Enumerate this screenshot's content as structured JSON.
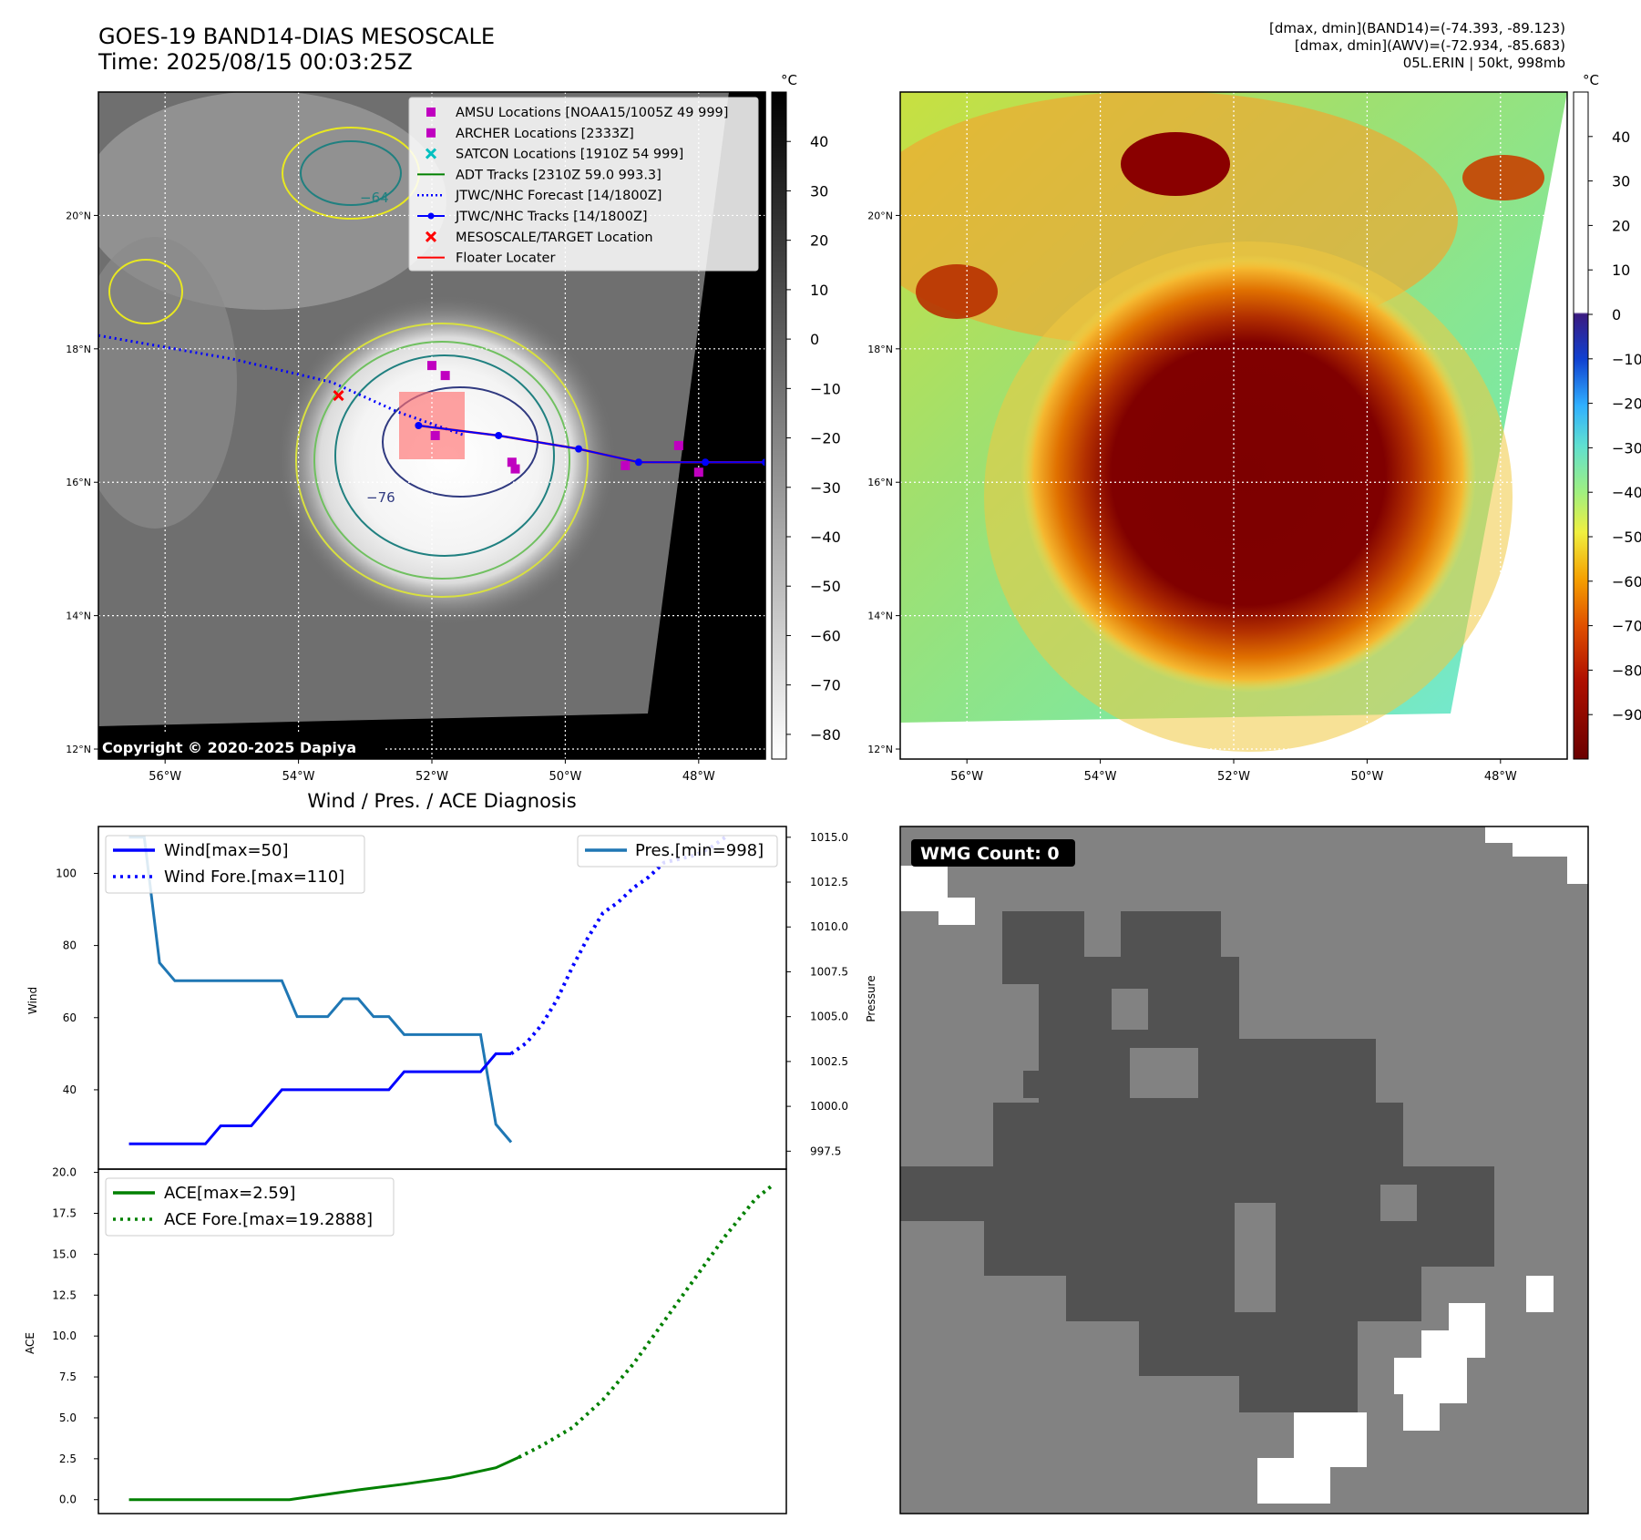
{
  "header": {
    "title_line1": "GOES-19 BAND14-DIAS MESOSCALE",
    "title_line2": "Time: 2025/08/15 00:03:25Z",
    "info_line1": "[dmax, dmin](BAND14)=(-74.393, -89.123)",
    "info_line2": "[dmax, dmin](AWV)=(-72.934, -85.683)",
    "info_line3": "05L.ERIN | 50kt, 998mb"
  },
  "map_common": {
    "lat_ticks": [
      "20°N",
      "18°N",
      "16°N",
      "14°N",
      "12°N"
    ],
    "lon_ticks": [
      "56°W",
      "54°W",
      "52°W",
      "50°W",
      "48°W"
    ],
    "lat_values": [
      20,
      18,
      16,
      14,
      12
    ],
    "lon_values": [
      -56,
      -54,
      -52,
      -50,
      -48
    ],
    "lat_range": [
      11.85,
      21.85
    ],
    "lon_range": [
      -57,
      -47
    ]
  },
  "ir_panel": {
    "copyright": "Copyright © 2020-2025 Dapiya",
    "colorbar_unit": "°C",
    "colorbar_ticks": [
      "40",
      "30",
      "20",
      "10",
      "0",
      "−10",
      "−20",
      "−30",
      "−40",
      "−50",
      "−60",
      "−70",
      "−80"
    ],
    "colorbar_values": [
      40,
      30,
      20,
      10,
      0,
      -10,
      -20,
      -30,
      -40,
      -50,
      -60,
      -70,
      -80
    ],
    "colorbar_range": [
      -85,
      50
    ],
    "contour_labels": [
      "−64",
      "−76"
    ],
    "legend": [
      {
        "label": "AMSU Locations [NOAA15/1005Z 49 999]",
        "color": "#c000c0",
        "marker": "square"
      },
      {
        "label": "ARCHER Locations [2333Z]",
        "color": "#c000c0",
        "marker": "square"
      },
      {
        "label": "SATCON Locations [1910Z 54 999]",
        "color": "#00c0c0",
        "marker": "x"
      },
      {
        "label": "ADT Tracks [2310Z 59.0 993.3]",
        "color": "#008000",
        "marker": "line"
      },
      {
        "label": "JTWC/NHC Forecast [14/1800Z]",
        "color": "#0000ff",
        "marker": "dotted"
      },
      {
        "label": "JTWC/NHC Tracks [14/1800Z]",
        "color": "#0000ff",
        "marker": "line-dot"
      },
      {
        "label": "MESOSCALE/TARGET Location",
        "color": "#ff0000",
        "marker": "x"
      },
      {
        "label": "Floater Locater",
        "color": "#ff0000",
        "marker": "line"
      }
    ],
    "forecast_track": [
      [
        -57,
        18.2
      ],
      [
        -55,
        17.85
      ],
      [
        -53.5,
        17.5
      ],
      [
        -52.5,
        17.05
      ],
      [
        -51.5,
        16.7
      ]
    ],
    "best_track": [
      [
        -52.2,
        16.85
      ],
      [
        -51,
        16.7
      ],
      [
        -49.8,
        16.5
      ],
      [
        -48.9,
        16.3
      ],
      [
        -47.9,
        16.3
      ],
      [
        -47,
        16.3
      ]
    ],
    "target_location": [
      -53.4,
      17.3
    ],
    "amsu_points": [
      [
        -52,
        17.75
      ],
      [
        -51.8,
        17.6
      ],
      [
        -51.95,
        16.7
      ],
      [
        -50.8,
        16.3
      ],
      [
        -50.75,
        16.2
      ],
      [
        -49.1,
        16.25
      ],
      [
        -48.3,
        16.55
      ],
      [
        -48,
        16.15
      ]
    ]
  },
  "awv_panel": {
    "colorbar_unit": "°C",
    "colorbar_ticks": [
      "40",
      "30",
      "20",
      "10",
      "0",
      "−10",
      "−20",
      "−30",
      "−40",
      "−50",
      "−60",
      "−70",
      "−80",
      "−90"
    ],
    "colorbar_values": [
      40,
      30,
      20,
      10,
      0,
      -10,
      -20,
      -30,
      -40,
      -50,
      -60,
      -70,
      -80,
      -90
    ],
    "colorbar_range": [
      -100,
      50
    ]
  },
  "diag_panel": {
    "title": "Wind / Pres. / ACE Diagnosis",
    "wind_ylabel": "Wind",
    "pressure_ylabel": "Pressure",
    "ace_ylabel": "ACE",
    "wind_legend": [
      {
        "label": "Wind[max=50]",
        "color": "#0000ff",
        "style": "solid"
      },
      {
        "label": "Wind Fore.[max=110]",
        "color": "#0000ff",
        "style": "dotted"
      }
    ],
    "pres_legend": [
      {
        "label": "Pres.[min=998]",
        "color": "#1f77b4",
        "style": "solid"
      }
    ],
    "ace_legend": [
      {
        "label": "ACE[max=2.59]",
        "color": "#008000",
        "style": "solid"
      },
      {
        "label": "ACE Fore.[max=19.2888]",
        "color": "#008000",
        "style": "dotted"
      }
    ],
    "wind_ticks": [
      "100",
      "80",
      "60",
      "40"
    ],
    "pressure_ticks": [
      "1015.0",
      "1012.5",
      "1010.0",
      "1007.5",
      "1005.0",
      "1002.5",
      "1000.0",
      "997.5"
    ],
    "ace_ticks": [
      "20.0",
      "17.5",
      "15.0",
      "12.5",
      "10.0",
      "7.5",
      "5.0",
      "2.5",
      "0.0"
    ]
  },
  "chart_data": [
    {
      "type": "line",
      "title": "Wind / Pres. / ACE Diagnosis",
      "ylabel": "Wind",
      "x_index_range": [
        -2,
        43
      ],
      "ylim": [
        18,
        113
      ],
      "series": [
        {
          "name": "Wind[max=50]",
          "x": [
            0,
            1,
            2,
            3,
            4,
            5,
            6,
            7,
            8,
            9,
            10,
            11,
            12,
            13,
            14,
            15,
            16,
            17,
            18,
            19,
            20,
            21,
            22,
            23,
            24,
            25
          ],
          "values": [
            25,
            25,
            25,
            25,
            25,
            25,
            30,
            30,
            30,
            35,
            40,
            40,
            40,
            40,
            40,
            40,
            40,
            40,
            45,
            45,
            45,
            45,
            45,
            45,
            50,
            50
          ]
        },
        {
          "name": "Wind Fore.[max=110]",
          "x": [
            25,
            26,
            27,
            28,
            29,
            30,
            31,
            32,
            33,
            34,
            35,
            36,
            37,
            38,
            39
          ],
          "values": [
            50,
            53,
            58,
            65,
            74,
            82,
            89,
            92,
            96,
            99,
            103,
            104,
            105,
            107,
            110
          ]
        }
      ]
    },
    {
      "type": "line",
      "ylabel": "Pressure",
      "ylim": [
        996.5,
        1015.6
      ],
      "series": [
        {
          "name": "Pres.[min=998]",
          "x": [
            0,
            1,
            2,
            3,
            4,
            5,
            6,
            7,
            8,
            9,
            10,
            11,
            12,
            13,
            14,
            15,
            16,
            17,
            18,
            19,
            20,
            21,
            22,
            23,
            24,
            25
          ],
          "values": [
            1015,
            1015,
            1008,
            1007,
            1007,
            1007,
            1007,
            1007,
            1007,
            1007,
            1007,
            1005,
            1005,
            1005,
            1006,
            1006,
            1005,
            1005,
            1004,
            1004,
            1004,
            1004,
            1004,
            1004,
            999,
            998
          ]
        }
      ]
    },
    {
      "type": "line",
      "ylabel": "ACE",
      "ylim": [
        -0.85,
        20.2
      ],
      "series": [
        {
          "name": "ACE[max=2.59]",
          "x": [
            0,
            3,
            6,
            9,
            10.5,
            12,
            15,
            18,
            21,
            24,
            25.5
          ],
          "values": [
            0,
            0,
            0,
            0,
            0,
            0.2,
            0.6,
            0.95,
            1.35,
            1.95,
            2.59
          ]
        },
        {
          "name": "ACE Fore.[max=19.2888]",
          "x": [
            25.5,
            27,
            29,
            31,
            33,
            35,
            37,
            39,
            41,
            42.2
          ],
          "values": [
            2.59,
            3.3,
            4.4,
            6.1,
            8.3,
            10.9,
            13.5,
            16.1,
            18.4,
            19.2888
          ]
        }
      ]
    }
  ],
  "wmg_panel": {
    "label": "WMG Count: 0"
  }
}
